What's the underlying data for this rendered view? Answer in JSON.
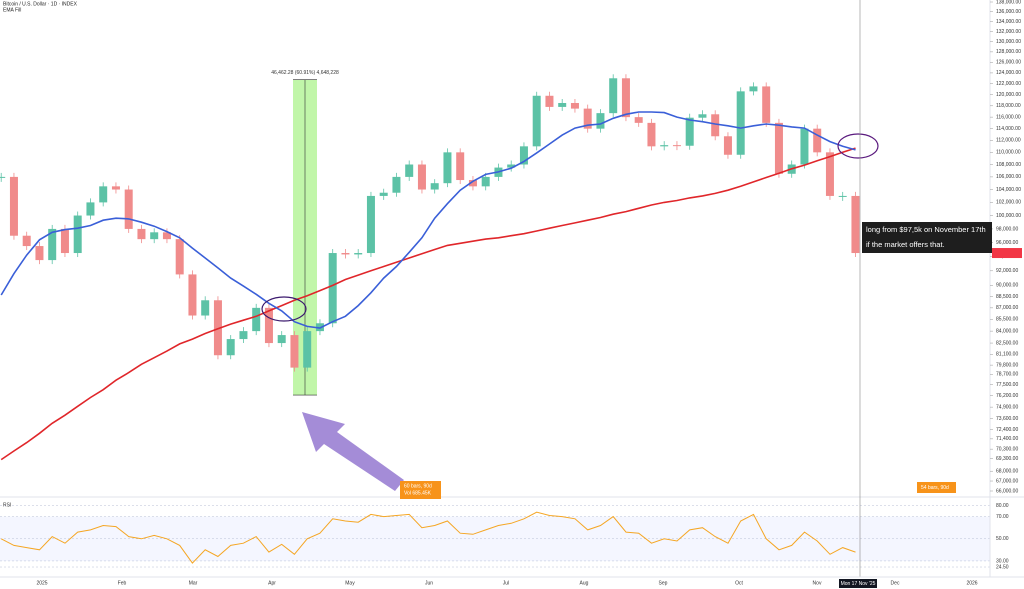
{
  "header": {
    "symbol": "Bitcoin / U.S. Dollar · 1D · INDEX",
    "indicator": "EMA Fill"
  },
  "chart_data": {
    "type": "candlestick",
    "log_scale": true,
    "ylim": [
      66000,
      138000
    ],
    "yticks": [
      {
        "value": 138000,
        "label": "138,000.00"
      },
      {
        "value": 136000,
        "label": "136,000.00"
      },
      {
        "value": 134000,
        "label": "134,000.00"
      },
      {
        "value": 132000,
        "label": "132,000.00"
      },
      {
        "value": 130000,
        "label": "130,000.00"
      },
      {
        "value": 128000,
        "label": "128,000.00"
      },
      {
        "value": 126000,
        "label": "126,000.00"
      },
      {
        "value": 124000,
        "label": "124,000.00"
      },
      {
        "value": 122000,
        "label": "122,000.00"
      },
      {
        "value": 120000,
        "label": "120,000.00"
      },
      {
        "value": 118000,
        "label": "118,000.00"
      },
      {
        "value": 116000,
        "label": "116,000.00"
      },
      {
        "value": 114000,
        "label": "114,000.00"
      },
      {
        "value": 112000,
        "label": "112,000.00"
      },
      {
        "value": 110000,
        "label": "110,000.00"
      },
      {
        "value": 108000,
        "label": "108,000.00"
      },
      {
        "value": 106000,
        "label": "106,000.00"
      },
      {
        "value": 104000,
        "label": "104,000.00"
      },
      {
        "value": 102000,
        "label": "102,000.00"
      },
      {
        "value": 100000,
        "label": "100,000.00"
      },
      {
        "value": 98000,
        "label": "98,000.00"
      },
      {
        "value": 96000,
        "label": "96,000.00"
      },
      {
        "value": 94000,
        "label": "94,000.00"
      },
      {
        "value": 92000,
        "label": "92,000.00"
      },
      {
        "value": 90000,
        "label": "90,000.00"
      },
      {
        "value": 88500,
        "label": "88,500.00"
      },
      {
        "value": 87000,
        "label": "87,000.00"
      },
      {
        "value": 85500,
        "label": "85,500.00"
      },
      {
        "value": 84000,
        "label": "84,000.00"
      },
      {
        "value": 82500,
        "label": "82,500.00"
      },
      {
        "value": 81100,
        "label": "81,100.00"
      },
      {
        "value": 79800,
        "label": "79,800.00"
      },
      {
        "value": 78700,
        "label": "78,700.00"
      },
      {
        "value": 77500,
        "label": "77,500.00"
      },
      {
        "value": 76200,
        "label": "76,200.00"
      },
      {
        "value": 74900,
        "label": "74,900.00"
      },
      {
        "value": 73600,
        "label": "73,600.00"
      },
      {
        "value": 72400,
        "label": "72,400.00"
      },
      {
        "value": 71400,
        "label": "71,400.00"
      },
      {
        "value": 70300,
        "label": "70,300.00"
      },
      {
        "value": 69300,
        "label": "69,300.00"
      },
      {
        "value": 68000,
        "label": "68,000.00"
      },
      {
        "value": 67000,
        "label": "67,000.00"
      },
      {
        "value": 66000,
        "label": "66,000.00"
      }
    ],
    "x_labels": [
      "2025",
      "Feb",
      "Mar",
      "Apr",
      "May",
      "Jun",
      "Jul",
      "Aug",
      "Sep",
      "Oct",
      "Nov",
      "Dec",
      "2026"
    ],
    "crosshair_date": "Mon 17 Nov '25",
    "price": {
      "up_color": "#5cc2a6",
      "down_color": "#f08b8b",
      "values": [
        106000,
        97000,
        95500,
        93500,
        98000,
        94500,
        100000,
        102000,
        104500,
        104000,
        98000,
        96500,
        97500,
        96500,
        91500,
        86000,
        88000,
        81000,
        83000,
        84000,
        87000,
        82500,
        83500,
        79500,
        84000,
        85000,
        94500,
        94300,
        94500,
        103000,
        103500,
        106000,
        108000,
        104000,
        105000,
        110000,
        105500,
        104500,
        106000,
        107500,
        108000,
        111000,
        119800,
        117800,
        118500,
        117500,
        114000,
        116700,
        123000,
        116000,
        115000,
        111000,
        111200,
        111100,
        115900,
        116500,
        112700,
        109600,
        120600,
        121500,
        115000,
        106500,
        108000,
        114000,
        110000,
        103000,
        103000,
        94500
      ]
    },
    "ma_fast": {
      "color": "#3a5fd8",
      "values": [
        88700,
        91600,
        94200,
        96400,
        97500,
        97900,
        98100,
        98500,
        99300,
        99600,
        99500,
        99000,
        98400,
        97600,
        96700,
        95200,
        93800,
        92400,
        91000,
        89900,
        88800,
        87600,
        86600,
        85200,
        84600,
        84400,
        85200,
        85900,
        87300,
        89000,
        91000,
        92600,
        94600,
        96700,
        99600,
        101800,
        103900,
        105300,
        106400,
        106800,
        107400,
        108500,
        109900,
        111400,
        112900,
        114100,
        114600,
        114800,
        115800,
        116500,
        116900,
        116900,
        116800,
        116000,
        115500,
        115200,
        114800,
        114500,
        114100,
        114500,
        114800,
        114600,
        114300,
        114100,
        112900,
        111800,
        111000,
        110400
      ]
    },
    "ma_slow": {
      "color": "#e0262a",
      "values": [
        69200,
        70100,
        71000,
        72000,
        73100,
        74000,
        75000,
        76000,
        76900,
        78000,
        78900,
        79900,
        80700,
        81500,
        82400,
        83000,
        83700,
        84300,
        84900,
        85400,
        85900,
        86600,
        87300,
        88000,
        88600,
        89300,
        90000,
        90800,
        91400,
        92000,
        92600,
        93200,
        93800,
        94400,
        95000,
        95600,
        95900,
        96200,
        96500,
        96700,
        97000,
        97300,
        97700,
        98100,
        98500,
        98900,
        99300,
        99700,
        100200,
        100600,
        101100,
        101600,
        102000,
        102300,
        102700,
        103000,
        103400,
        103900,
        104500,
        105200,
        105900,
        106600,
        107300,
        107900,
        108600,
        109300,
        110000,
        110700
      ]
    },
    "measure": {
      "from": 76280,
      "to": 122742,
      "label": "46,462.28 (60.91%) 4,648,228",
      "color": "#b6f59a"
    },
    "annotations": {
      "note": [
        "long from $97,5k on November 17th",
        "if the market offers that."
      ],
      "bars_left": [
        "60 bars, 90d",
        "Vol 685.45K"
      ],
      "bars_right": "54 bars, 90d"
    },
    "rsi": {
      "label": "RSI",
      "color": "#f5a623",
      "ylim": [
        20,
        85
      ],
      "yticks": [
        {
          "value": 80,
          "label": "80.00"
        },
        {
          "value": 70,
          "label": "70.00"
        },
        {
          "value": 50,
          "label": "50.00"
        },
        {
          "value": 30,
          "label": "30.00"
        },
        {
          "value": 24.5,
          "label": "24.50"
        }
      ],
      "values": [
        50,
        44,
        42,
        40,
        52,
        46,
        56,
        58,
        62,
        61,
        52,
        50,
        53,
        50,
        44,
        28,
        40,
        34,
        44,
        46,
        52,
        38,
        45,
        36,
        50,
        55,
        68,
        66,
        65,
        72,
        70,
        71,
        72,
        60,
        62,
        66,
        55,
        54,
        58,
        62,
        64,
        68,
        74,
        71,
        70,
        68,
        58,
        62,
        70,
        56,
        55,
        46,
        50,
        48,
        58,
        60,
        52,
        46,
        66,
        72,
        50,
        40,
        44,
        56,
        48,
        36,
        42,
        38
      ]
    }
  }
}
